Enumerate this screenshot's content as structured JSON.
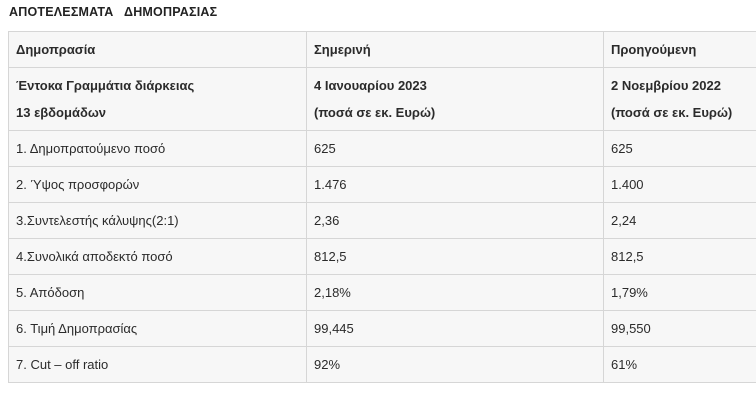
{
  "title": "ΑΠΟΤΕΛΕΣΜΑΤΑ   ΔΗΜΟΠΡΑΣΙΑΣ",
  "header": {
    "col1": "Δημοπρασία",
    "col2": "Σημερινή",
    "col3": "Προηγούμενη"
  },
  "subheader": {
    "col1_line1": "Έντοκα Γραμμάτια διάρκειας",
    "col1_line2": "13 εβδομάδων",
    "col2_line1": "4 Ιανουαρίου 2023",
    "col2_line2": "(ποσά σε εκ. Ευρώ)",
    "col3_line1": "2 Νοεμβρίου 2022",
    "col3_line2": "(ποσά σε εκ. Ευρώ)"
  },
  "rows": [
    {
      "label": "1. Δημοπρατούμενο ποσό",
      "current": "625",
      "previous": "625"
    },
    {
      "label": "2. Ύψος προσφορών",
      "current": "1.476",
      "previous": "1.400"
    },
    {
      "label": "3.Συντελεστής κάλυψης(2:1)",
      "current": "2,36",
      "previous": "2,24"
    },
    {
      "label": "4.Συνολικά αποδεκτό ποσό",
      "current": "812,5",
      "previous": "812,5"
    },
    {
      "label": "5. Απόδοση",
      "current": "2,18%",
      "previous": "1,79%"
    },
    {
      "label": "6. Τιμή Δημοπρασίας",
      "current": "99,445",
      "previous": "99,550"
    },
    {
      "label": "7. Cut – off ratio",
      "current": "92%",
      "previous": "61%"
    }
  ]
}
